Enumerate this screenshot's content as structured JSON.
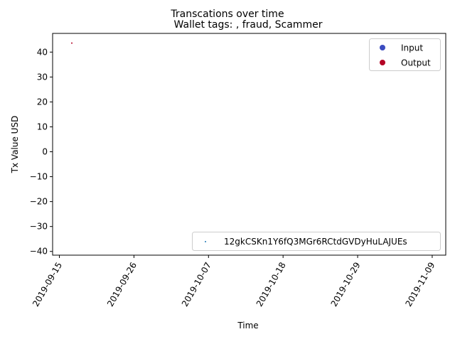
{
  "chart_data": {
    "type": "scatter",
    "suptitle": "Transcations over time",
    "title": "Wallet tags: , fraud, Scammer",
    "xlabel": "Time",
    "ylabel": "Tx Value USD",
    "x_ticks": [
      "2019-09-15",
      "2019-09-26",
      "2019-10-07",
      "2019-10-18",
      "2019-10-29",
      "2019-11-09"
    ],
    "y_ticks": [
      40,
      30,
      20,
      10,
      0,
      -10,
      -20,
      -30,
      -40
    ],
    "xlim": [
      "2019-09-14",
      "2019-11-11"
    ],
    "ylim": [
      -41.5,
      47.5
    ],
    "series": [
      {
        "name": "Output",
        "points": [
          {
            "x": "2019-09-16 20:00",
            "y": 43.6
          }
        ]
      }
    ],
    "legend_top": {
      "placement": "top-right",
      "entries": [
        {
          "label": "Input",
          "color": "#3b4cc0"
        },
        {
          "label": "Output",
          "color": "#b40426"
        }
      ]
    },
    "legend_bottom": {
      "placement": "lower-right",
      "entries": [
        {
          "label": "12gkCSKn1Y6fQ3MGr6RCtdGVDyHuLAJUEs",
          "color": "#1f77b4"
        }
      ]
    },
    "grid": false
  }
}
